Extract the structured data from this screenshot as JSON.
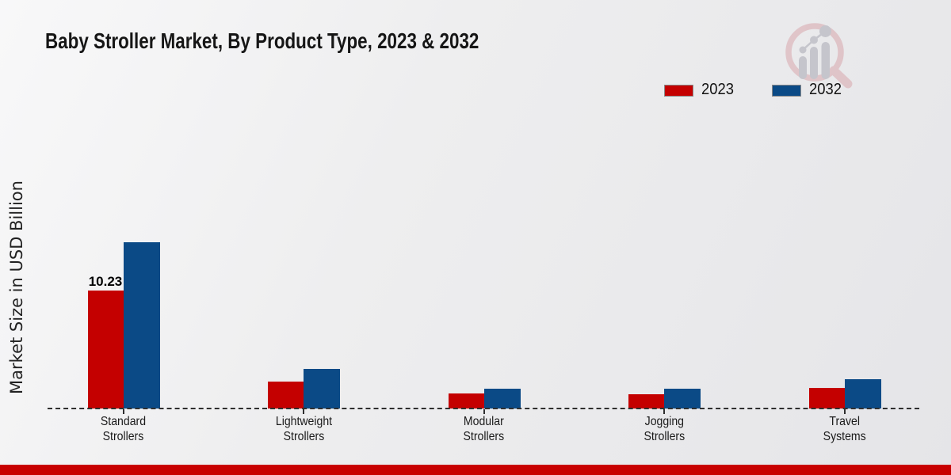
{
  "page": {
    "footer_bar_color": "#c80000"
  },
  "header": {
    "title": "Baby Stroller Market, By Product Type, 2023 & 2032"
  },
  "legend": {
    "items": [
      {
        "label": "2023",
        "color": "#c40000"
      },
      {
        "label": "2032",
        "color": "#0b4a86"
      }
    ]
  },
  "chart_data": {
    "type": "bar",
    "title": "Baby Stroller Market, By Product Type, 2023 & 2032",
    "xlabel": "",
    "ylabel": "Market Size in USD Billion",
    "categories": [
      "Standard Strollers",
      "Lightweight Strollers",
      "Modular Strollers",
      "Jogging Strollers",
      "Travel Systems"
    ],
    "category_label_lines": [
      [
        "Standard",
        "Strollers"
      ],
      [
        "Lightweight",
        "Strollers"
      ],
      [
        "Modular",
        "Strollers"
      ],
      [
        "Jogging",
        "Strollers"
      ],
      [
        "Travel",
        "Systems"
      ]
    ],
    "series": [
      {
        "name": "2023",
        "color": "#c40000",
        "values": [
          10.23,
          2.33,
          1.3,
          1.21,
          1.78
        ]
      },
      {
        "name": "2032",
        "color": "#0b4a86",
        "values": [
          14.42,
          3.43,
          1.72,
          1.69,
          2.54
        ]
      }
    ],
    "bar_labels": [
      {
        "series": "2023",
        "category": "Standard Strollers",
        "text": "10.23"
      }
    ],
    "ylim": [
      0,
      15
    ],
    "grid": false,
    "legend_position": "top-right",
    "baseline_style": "dashed",
    "units": "USD Billion"
  },
  "watermark": {
    "icon": "magnifier-bar-chart-logo"
  }
}
